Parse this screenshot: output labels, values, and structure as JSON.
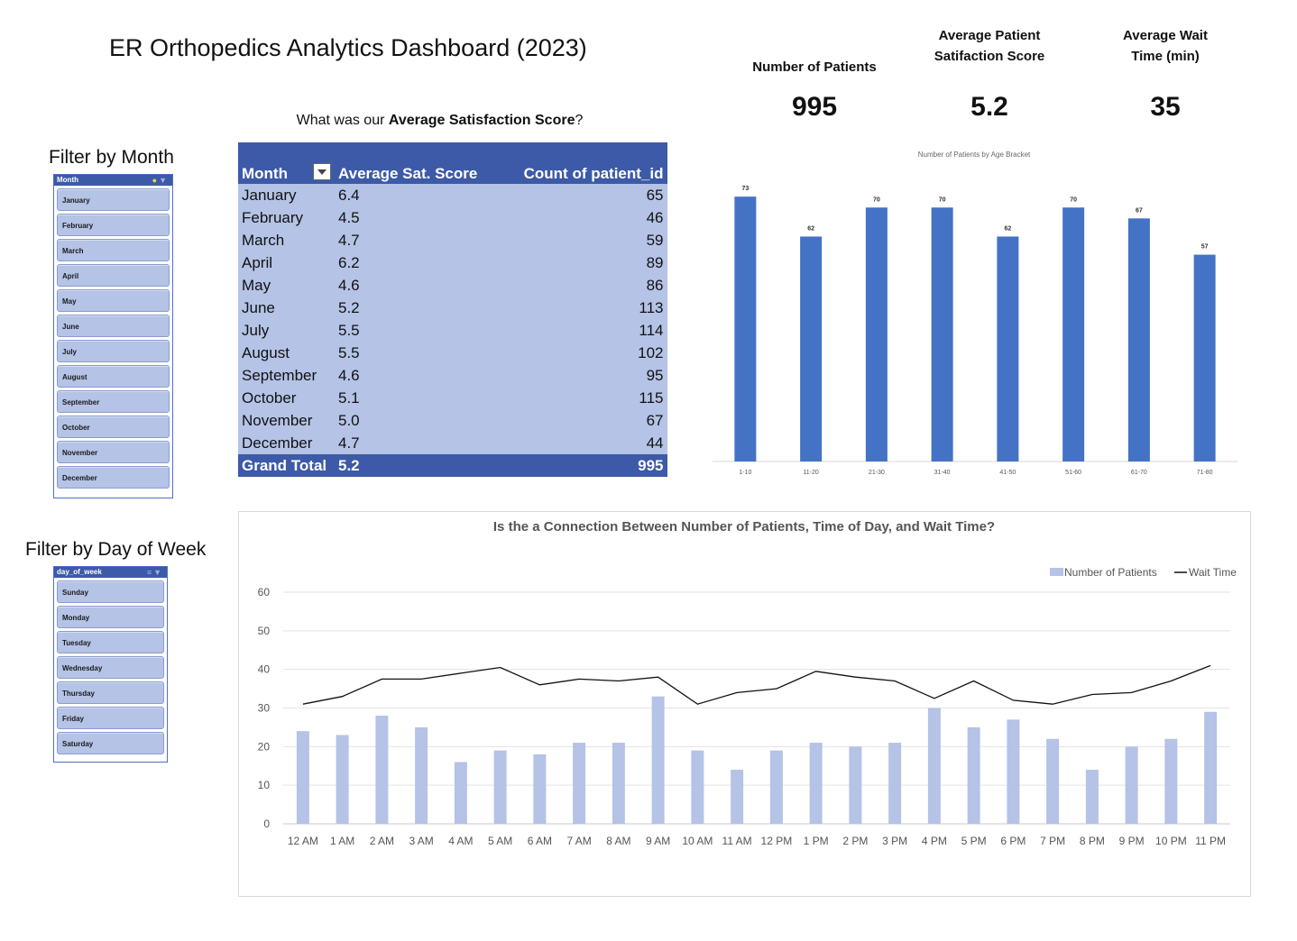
{
  "title": "ER Orthopedics Analytics Dashboard (2023)",
  "kpis": [
    {
      "label_lines": [
        "Number of Patients"
      ],
      "value": "995"
    },
    {
      "label_lines": [
        "Average Patient",
        "Satifaction Score"
      ],
      "value": "5.2"
    },
    {
      "label_lines": [
        "Average Wait",
        "Time (min)"
      ],
      "value": "35"
    }
  ],
  "month_filter": {
    "title": "Filter by Month",
    "header": "Month",
    "items": [
      "January",
      "February",
      "March",
      "April",
      "May",
      "June",
      "July",
      "August",
      "September",
      "October",
      "November",
      "December"
    ]
  },
  "day_filter": {
    "title": "Filter by Day of Week",
    "header": "day_of_week",
    "items": [
      "Sunday",
      "Monday",
      "Tuesday",
      "Wednesday",
      "Thursday",
      "Friday",
      "Saturday"
    ]
  },
  "pivot": {
    "caption_prefix": "What was our ",
    "caption_bold": "Average Satisfaction Score",
    "caption_suffix": "?",
    "headers": [
      "Month",
      "Average Sat. Score",
      "Count of patient_id"
    ],
    "rows": [
      [
        "January",
        "6.4",
        "65"
      ],
      [
        "February",
        "4.5",
        "46"
      ],
      [
        "March",
        "4.7",
        "59"
      ],
      [
        "April",
        "6.2",
        "89"
      ],
      [
        "May",
        "4.6",
        "86"
      ],
      [
        "June",
        "5.2",
        "113"
      ],
      [
        "July",
        "5.5",
        "114"
      ],
      [
        "August",
        "5.5",
        "102"
      ],
      [
        "September",
        "4.6",
        "95"
      ],
      [
        "October",
        "5.1",
        "115"
      ],
      [
        "November",
        "5.0",
        "67"
      ],
      [
        "December",
        "4.7",
        "44"
      ]
    ],
    "total": [
      "Grand Total",
      "5.2",
      "995"
    ]
  },
  "chart_data": [
    {
      "type": "bar",
      "title": "Number of Patients by Age Bracket",
      "categories": [
        "1-10",
        "11-20",
        "21-30",
        "31-40",
        "41-50",
        "51-60",
        "61-70",
        "71-80"
      ],
      "values": [
        73,
        62,
        70,
        70,
        62,
        70,
        67,
        57
      ],
      "data_labels": true,
      "color": "#4472c4",
      "ylim": [
        0,
        80
      ],
      "grid": false
    },
    {
      "type": "bar+line",
      "title": "Is the a Connection Between Number of Patients, Time of Day, and Wait Time?",
      "categories": [
        "12 AM",
        "1 AM",
        "2 AM",
        "3 AM",
        "4 AM",
        "5 AM",
        "6 AM",
        "7 AM",
        "8 AM",
        "9 AM",
        "10 AM",
        "11 AM",
        "12 PM",
        "1 PM",
        "2 PM",
        "3 PM",
        "4 PM",
        "5 PM",
        "6 PM",
        "7 PM",
        "8 PM",
        "9 PM",
        "10 PM",
        "11 PM"
      ],
      "series": [
        {
          "name": "Number of Patients",
          "type": "bar",
          "color": "#b4c3e6",
          "values": [
            24,
            23,
            28,
            25,
            16,
            19,
            18,
            21,
            21,
            33,
            19,
            14,
            19,
            21,
            20,
            21,
            30,
            25,
            27,
            22,
            14,
            20,
            22,
            29
          ]
        },
        {
          "name": "Wait Time",
          "type": "line",
          "color": "#111111",
          "values": [
            31,
            33,
            37.5,
            37.5,
            39,
            40.5,
            36,
            37.5,
            37,
            38,
            31,
            34,
            35,
            39.5,
            38,
            37,
            32.5,
            37,
            32,
            31,
            33.5,
            34,
            37,
            41
          ]
        }
      ],
      "ylim": [
        0,
        60
      ],
      "yticks": [
        0,
        10,
        20,
        30,
        40,
        50,
        60
      ],
      "grid": true,
      "legend": "top-right"
    }
  ]
}
